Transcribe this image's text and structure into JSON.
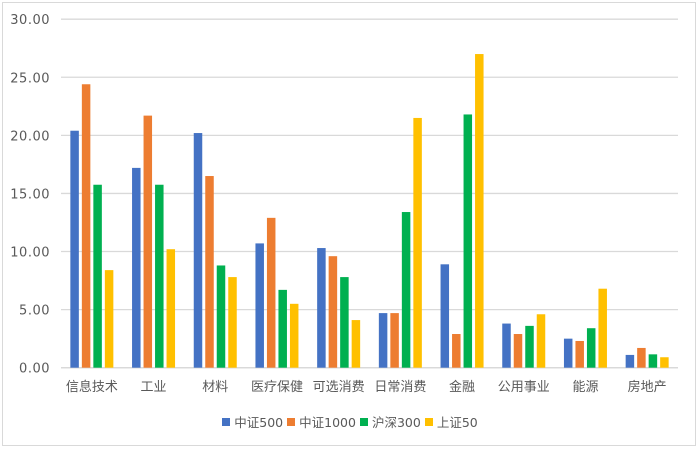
{
  "chart_data": {
    "type": "bar",
    "title": "",
    "xlabel": "",
    "ylabel": "",
    "ylim": [
      0,
      30
    ],
    "yticks": [
      "0.00",
      "5.00",
      "10.00",
      "15.00",
      "20.00",
      "25.00",
      "30.00"
    ],
    "grid": true,
    "legend_position": "bottom",
    "categories": [
      "信息技术",
      "工业",
      "材料",
      "医疗保健",
      "可选消费",
      "日常消费",
      "金融",
      "公用事业",
      "能源",
      "房地产"
    ],
    "series": [
      {
        "name": "中证500",
        "color": "#4472C4",
        "values": [
          20.4,
          17.2,
          20.2,
          10.7,
          10.3,
          4.7,
          8.9,
          3.8,
          2.5,
          1.1
        ]
      },
      {
        "name": "中证1000",
        "color": "#ED7D31",
        "values": [
          24.4,
          21.7,
          16.5,
          12.9,
          9.6,
          4.7,
          2.9,
          2.9,
          2.3,
          1.7
        ]
      },
      {
        "name": "沪深300",
        "color": "#00B050",
        "values": [
          15.75,
          15.75,
          8.8,
          6.7,
          7.8,
          13.4,
          21.8,
          3.6,
          3.4,
          1.15
        ]
      },
      {
        "name": "上证50",
        "color": "#FFC000",
        "values": [
          8.4,
          10.2,
          7.8,
          5.5,
          4.1,
          21.5,
          27.0,
          4.6,
          6.8,
          0.9
        ]
      }
    ]
  }
}
